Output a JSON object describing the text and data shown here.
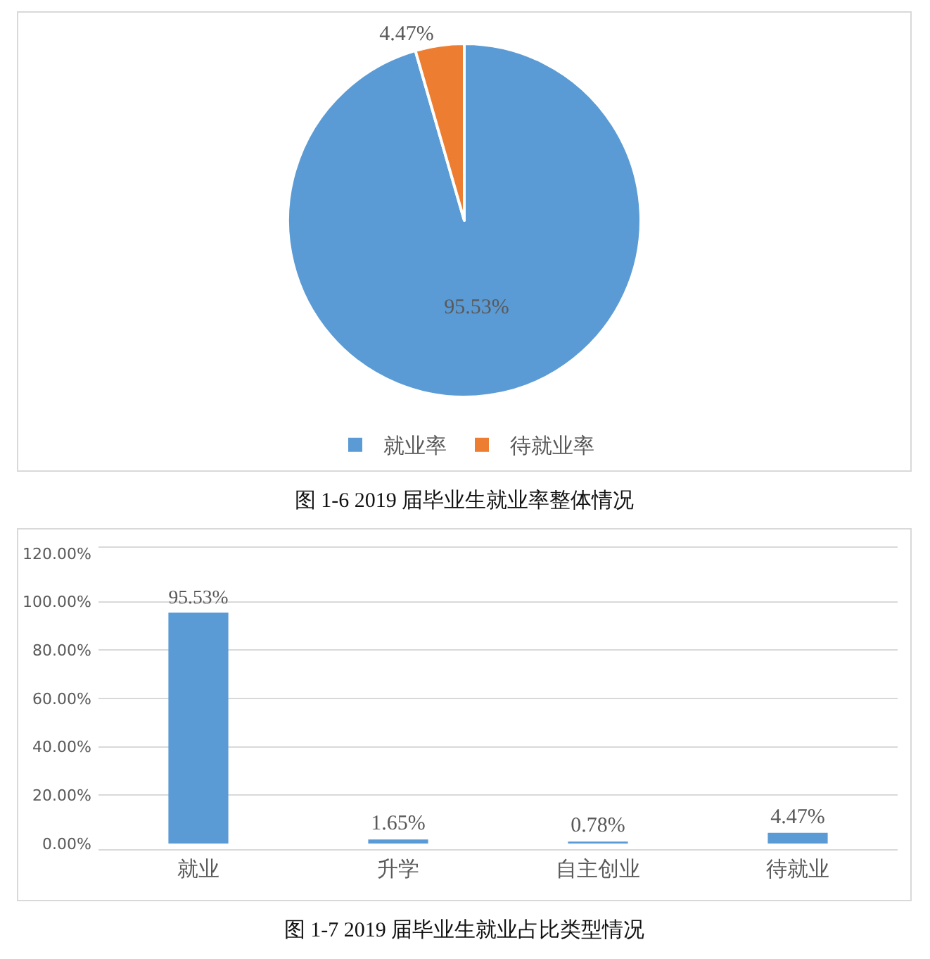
{
  "chart_data": [
    {
      "type": "pie",
      "categories": [
        "就业率",
        "待就业率"
      ],
      "values": [
        95.53,
        4.47
      ],
      "colors": [
        "#5b9bd5",
        "#ed7d31"
      ],
      "value_labels": [
        "95.53%",
        "4.47%"
      ],
      "legend": "bottom",
      "annotations": [
        "图 1-6 2019 届毕业生就业率整体情况"
      ]
    },
    {
      "type": "bar",
      "categories": [
        "就业",
        "升学",
        "自主创业",
        "待就业"
      ],
      "values": [
        95.53,
        1.65,
        0.78,
        4.47
      ],
      "color": "#5b9bd5",
      "value_labels": [
        "95.53%",
        "1.65%",
        "0.78%",
        "4.47%"
      ],
      "ylim": [
        0,
        120
      ],
      "yticks": [
        {
          "value": 0,
          "label": "0.00%"
        },
        {
          "value": 20,
          "label": "20.00%"
        },
        {
          "value": 40,
          "label": "40.00%"
        },
        {
          "value": 60,
          "label": "60.00%"
        },
        {
          "value": 80,
          "label": "80.00%"
        },
        {
          "value": 100,
          "label": "100.00%"
        },
        {
          "value": 120,
          "label": "120.00%"
        }
      ],
      "grid": "y",
      "annotations": [
        "图 1-7 2019 届毕业生就业占比类型情况"
      ]
    }
  ]
}
